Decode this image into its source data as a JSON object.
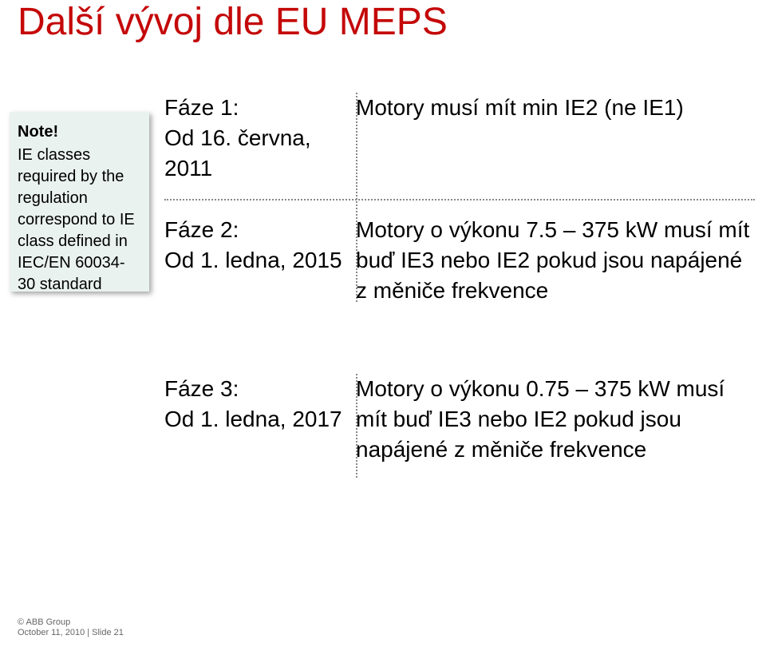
{
  "title": {
    "text": "Další vývoj dle EU MEPS",
    "color": "#c40808"
  },
  "note": {
    "heading": "Note!",
    "body": "IE classes required by the regulation correspond to IE class defined in IEC/EN 60034-30 standard"
  },
  "phase1": {
    "label": "Fáze 1:",
    "date": "Od 16. června, 2011",
    "desc": "Motory musí mít min IE2 (ne IE1)"
  },
  "phase2": {
    "label": "Fáze 2:",
    "date": "Od 1. ledna, 2015",
    "desc": "Motory o výkonu 7.5 – 375 kW musí mít buď IE3 nebo IE2 pokud jsou napájené z měniče frekvence"
  },
  "phase3": {
    "label": "Fáze 3:",
    "date": "Od 1. ledna, 2017",
    "desc": "Motory o výkonu 0.75 – 375 kW musí mít buď IE3 nebo IE2 pokud jsou napájené z měniče frekvence"
  },
  "footer": {
    "line1": "© ABB Group",
    "line2": "October 11, 2010 | Slide 21"
  },
  "colors": {
    "note_bg": "#eaf2f0",
    "dotted": "#888888",
    "title": "#c40808"
  }
}
